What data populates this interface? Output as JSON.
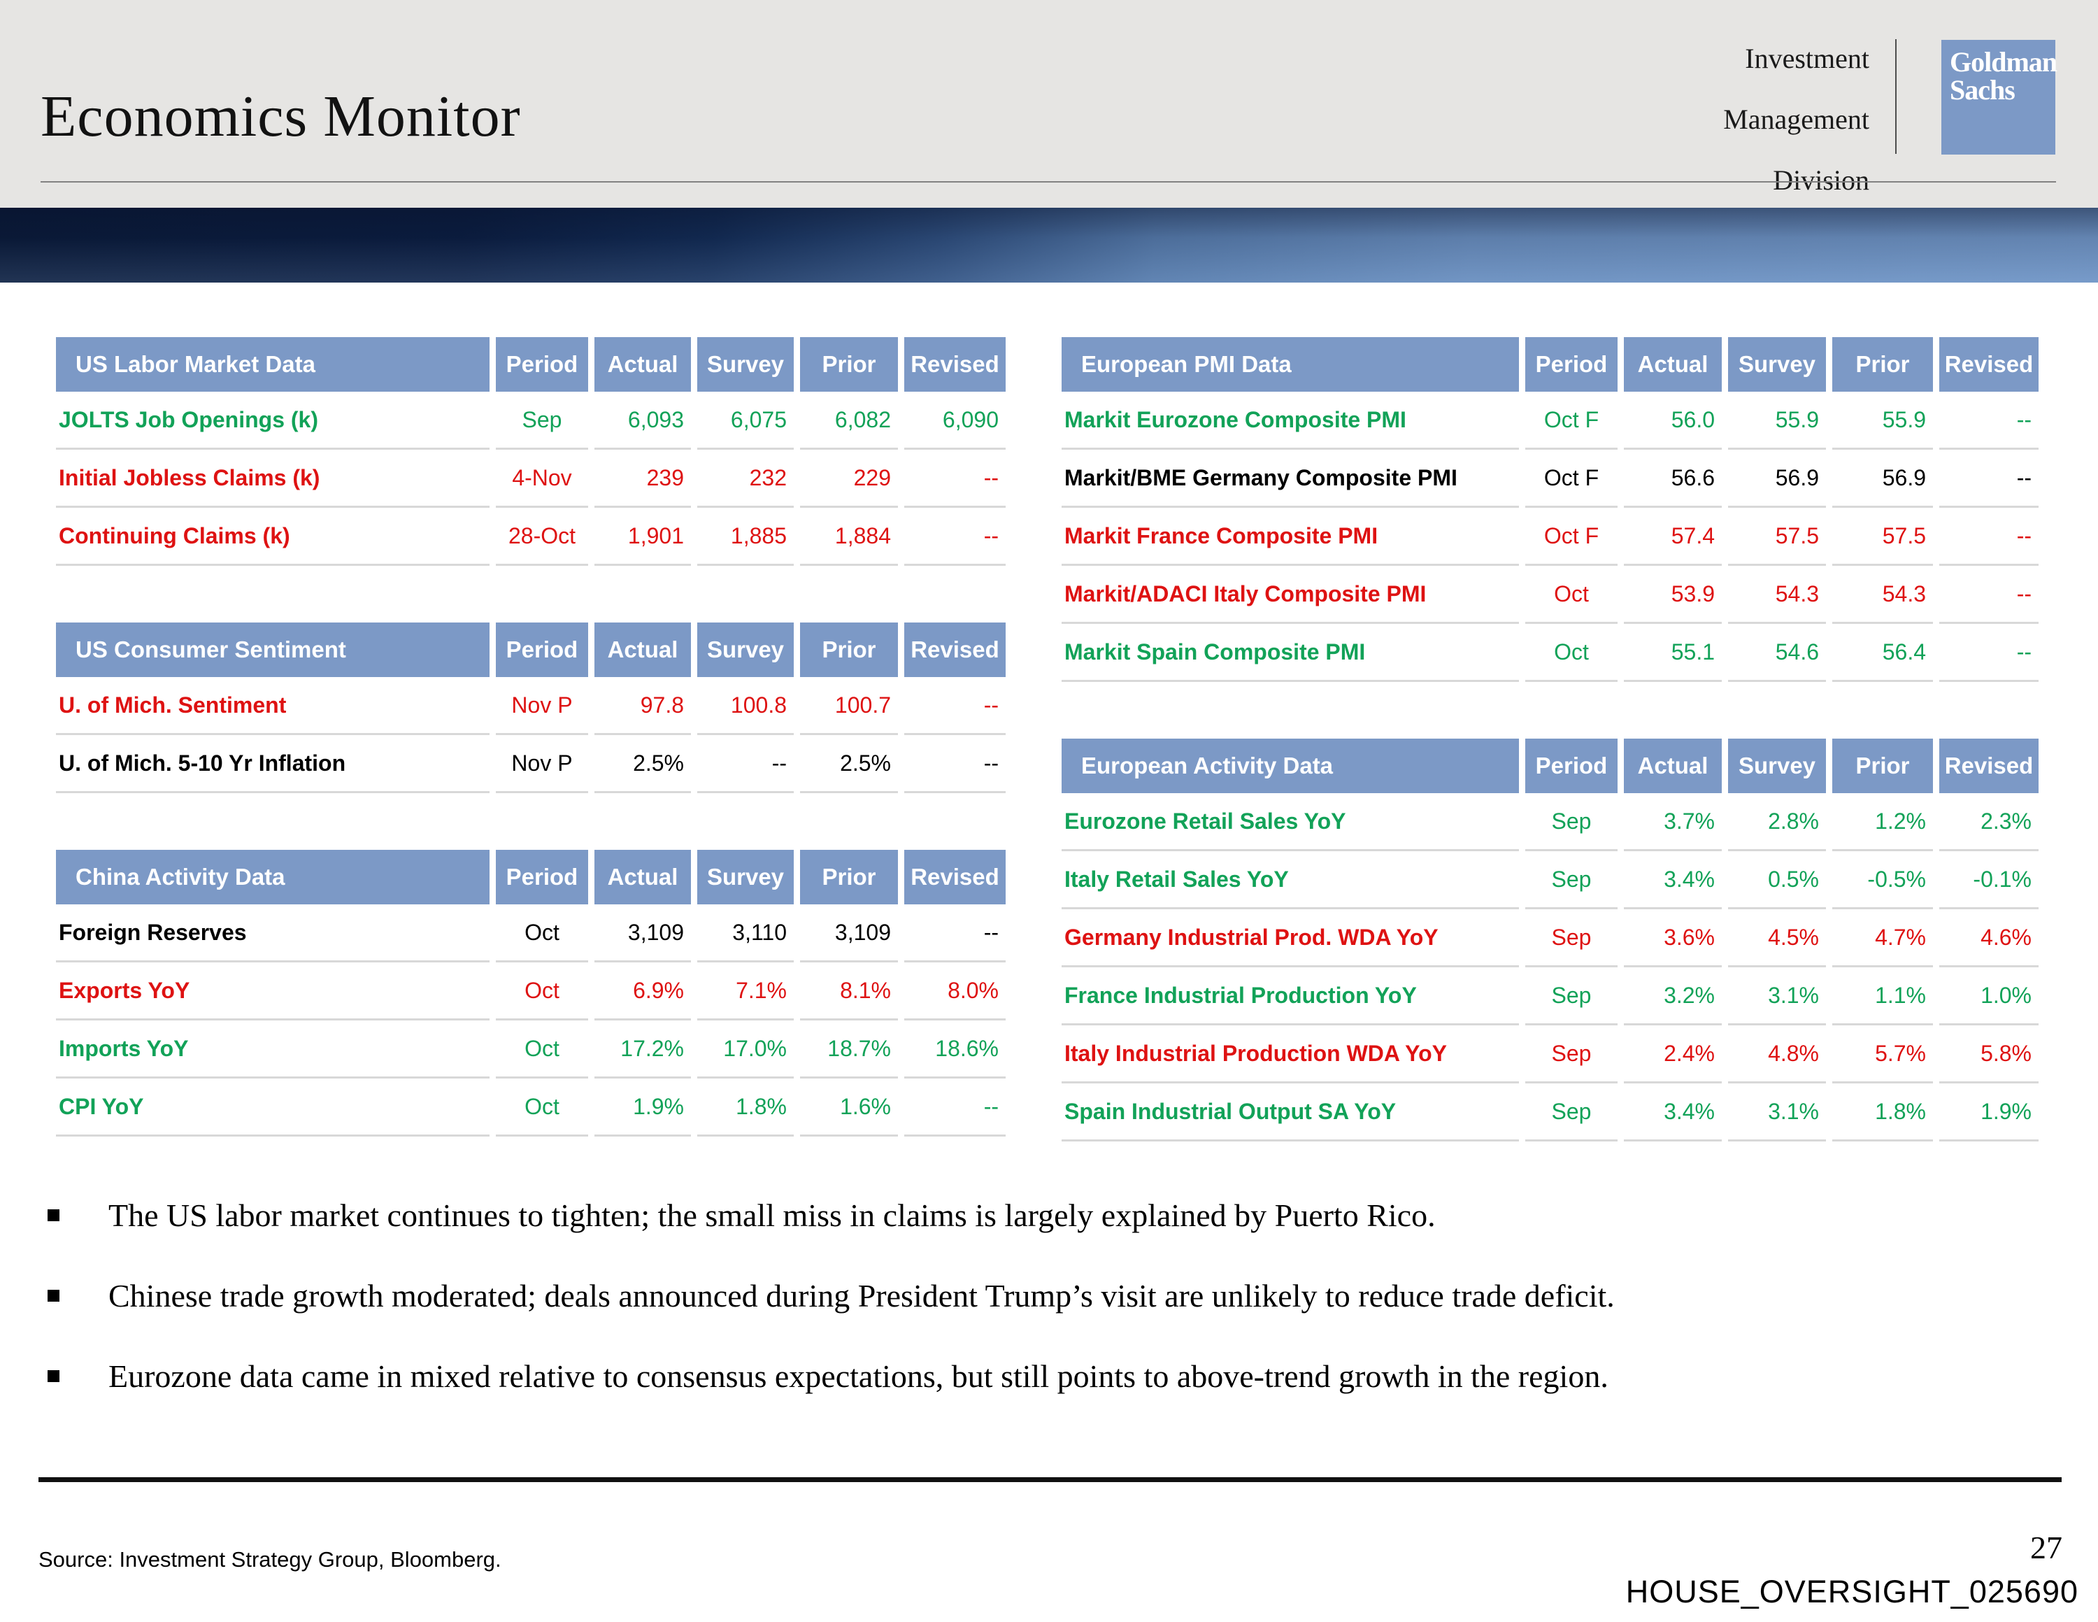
{
  "header": {
    "title": "Economics Monitor",
    "division_lines": [
      "Investment",
      "Management",
      "Division"
    ],
    "logo_lines": [
      "Goldman",
      "Sachs"
    ]
  },
  "columns": [
    "Period",
    "Actual",
    "Survey",
    "Prior",
    "Revised"
  ],
  "tables": {
    "us_labor": {
      "title": "US Labor Market Data",
      "rows": [
        {
          "label": "JOLTS Job Openings (k)",
          "period": "Sep",
          "actual": "6,093",
          "survey": "6,075",
          "prior": "6,082",
          "revised": "6,090",
          "color": "green"
        },
        {
          "label": "Initial Jobless Claims (k)",
          "period": "4-Nov",
          "actual": "239",
          "survey": "232",
          "prior": "229",
          "revised": "--",
          "color": "red"
        },
        {
          "label": "Continuing Claims (k)",
          "period": "28-Oct",
          "actual": "1,901",
          "survey": "1,885",
          "prior": "1,884",
          "revised": "--",
          "color": "red"
        }
      ]
    },
    "us_sentiment": {
      "title": "US Consumer Sentiment",
      "rows": [
        {
          "label": "U. of Mich. Sentiment",
          "period": "Nov P",
          "actual": "97.8",
          "survey": "100.8",
          "prior": "100.7",
          "revised": "--",
          "color": "red"
        },
        {
          "label": "U. of Mich. 5-10 Yr Inflation",
          "period": "Nov P",
          "actual": "2.5%",
          "survey": "--",
          "prior": "2.5%",
          "revised": "--",
          "color": "black"
        }
      ]
    },
    "china": {
      "title": "China Activity Data",
      "rows": [
        {
          "label": "Foreign Reserves",
          "period": "Oct",
          "actual": "3,109",
          "survey": "3,110",
          "prior": "3,109",
          "revised": "--",
          "color": "black"
        },
        {
          "label": "Exports YoY",
          "period": "Oct",
          "actual": "6.9%",
          "survey": "7.1%",
          "prior": "8.1%",
          "revised": "8.0%",
          "color": "red"
        },
        {
          "label": "Imports YoY",
          "period": "Oct",
          "actual": "17.2%",
          "survey": "17.0%",
          "prior": "18.7%",
          "revised": "18.6%",
          "color": "green"
        },
        {
          "label": "CPI YoY",
          "period": "Oct",
          "actual": "1.9%",
          "survey": "1.8%",
          "prior": "1.6%",
          "revised": "--",
          "color": "green"
        }
      ]
    },
    "eu_pmi": {
      "title": "European PMI Data",
      "rows": [
        {
          "label": "Markit Eurozone Composite PMI",
          "period": "Oct F",
          "actual": "56.0",
          "survey": "55.9",
          "prior": "55.9",
          "revised": "--",
          "color": "green"
        },
        {
          "label": "Markit/BME Germany Composite PMI",
          "period": "Oct F",
          "actual": "56.6",
          "survey": "56.9",
          "prior": "56.9",
          "revised": "--",
          "color": "black"
        },
        {
          "label": "Markit France Composite PMI",
          "period": "Oct F",
          "actual": "57.4",
          "survey": "57.5",
          "prior": "57.5",
          "revised": "--",
          "color": "red"
        },
        {
          "label": "Markit/ADACI Italy Composite PMI",
          "period": "Oct",
          "actual": "53.9",
          "survey": "54.3",
          "prior": "54.3",
          "revised": "--",
          "color": "red"
        },
        {
          "label": "Markit Spain Composite PMI",
          "period": "Oct",
          "actual": "55.1",
          "survey": "54.6",
          "prior": "56.4",
          "revised": "--",
          "color": "green"
        }
      ]
    },
    "eu_activity": {
      "title": "European Activity Data",
      "rows": [
        {
          "label": "Eurozone Retail Sales YoY",
          "period": "Sep",
          "actual": "3.7%",
          "survey": "2.8%",
          "prior": "1.2%",
          "revised": "2.3%",
          "color": "green"
        },
        {
          "label": "Italy Retail Sales YoY",
          "period": "Sep",
          "actual": "3.4%",
          "survey": "0.5%",
          "prior": "-0.5%",
          "revised": "-0.1%",
          "color": "green"
        },
        {
          "label": "Germany Industrial Prod. WDA YoY",
          "period": "Sep",
          "actual": "3.6%",
          "survey": "4.5%",
          "prior": "4.7%",
          "revised": "4.6%",
          "color": "red"
        },
        {
          "label": "France Industrial Production YoY",
          "period": "Sep",
          "actual": "3.2%",
          "survey": "3.1%",
          "prior": "1.1%",
          "revised": "1.0%",
          "color": "green"
        },
        {
          "label": "Italy Industrial Production WDA YoY",
          "period": "Sep",
          "actual": "2.4%",
          "survey": "4.8%",
          "prior": "5.7%",
          "revised": "5.8%",
          "color": "red"
        },
        {
          "label": "Spain Industrial Output SA YoY",
          "period": "Sep",
          "actual": "3.4%",
          "survey": "3.1%",
          "prior": "1.8%",
          "revised": "1.9%",
          "color": "green"
        }
      ]
    }
  },
  "bullets": [
    "The US labor market continues to tighten; the small miss in claims is largely explained by Puerto Rico.",
    "Chinese trade growth moderated; deals announced during President Trump’s visit are unlikely to reduce trade deficit.",
    "Eurozone data came in mixed relative to consensus expectations, but still points to above-trend growth in the region."
  ],
  "footer": {
    "source": "Source: Investment Strategy Group, Bloomberg.",
    "page_number": "27",
    "watermark": "HOUSE_OVERSIGHT_025690"
  },
  "colors": {
    "table_header_blue": "#7C99C6",
    "positive_green": "#12A258",
    "negative_red": "#DE1212",
    "neutral_black": "#000000",
    "band_gray": "#E6E5E3",
    "separator_gray": "#D8D8D8",
    "banner_dark_navy": "#0A1A38",
    "banner_steel_blue": "#7398C8"
  }
}
